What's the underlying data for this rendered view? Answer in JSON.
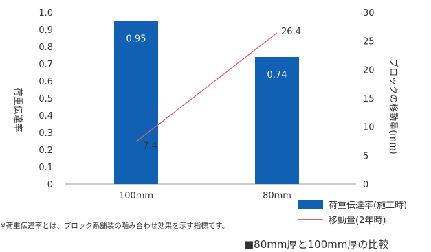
{
  "chart_data": {
    "type": "bar",
    "categories": [
      "100mm",
      "80mm"
    ],
    "series": [
      {
        "name": "荷重伝達率(施工時)",
        "kind": "bar",
        "axis": "left",
        "values": [
          0.95,
          0.74
        ],
        "labels": [
          "0.95",
          "0.74"
        ],
        "color": "#1060b4"
      },
      {
        "name": "移動量(2年時)",
        "kind": "line",
        "axis": "right",
        "values": [
          7.4,
          26.4
        ],
        "labels": [
          "7.4",
          "26.4"
        ],
        "color": "#e06070"
      }
    ],
    "ylabel": "荷重伝達率",
    "y2label": "ブロックの移動量(mm)",
    "ylim": [
      0,
      1.0
    ],
    "y2lim": [
      0,
      30
    ],
    "yticks": [
      "0",
      "0.1",
      "0.2",
      "0.3",
      "0.4",
      "0.5",
      "0.6",
      "0.7",
      "0.8",
      "0.9",
      "1.0"
    ],
    "y2ticks": [
      "0",
      "5",
      "10",
      "15",
      "20",
      "25",
      "30"
    ],
    "grid": false,
    "legend_position": "bottom-right"
  },
  "note": "※荷重伝達率とは、ブロック系舗装の噛み合わせ効果を示す指標です。",
  "caption": "■80mm厚と100mm厚の比較"
}
